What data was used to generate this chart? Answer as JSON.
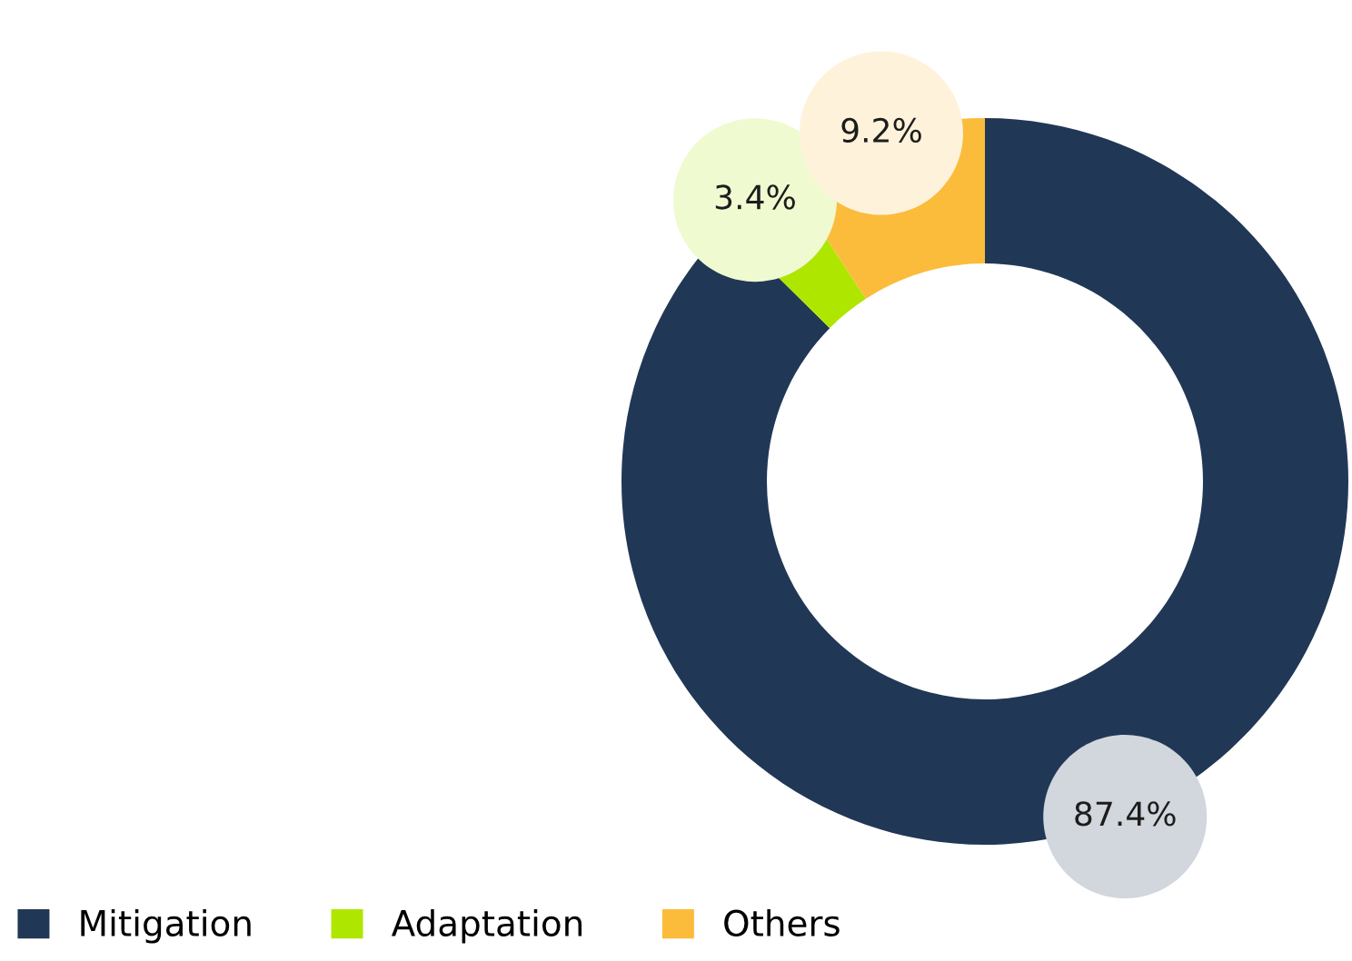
{
  "chart_data": {
    "type": "donut",
    "categories": [
      "Mitigation",
      "Adaptation",
      "Others"
    ],
    "values": [
      87.4,
      3.4,
      9.2
    ],
    "colors": [
      "#213756",
      "#aee600",
      "#fbbc3c"
    ],
    "value_labels": [
      "87.4%",
      "3.4%",
      "9.2%"
    ],
    "legend": "bottom left"
  }
}
